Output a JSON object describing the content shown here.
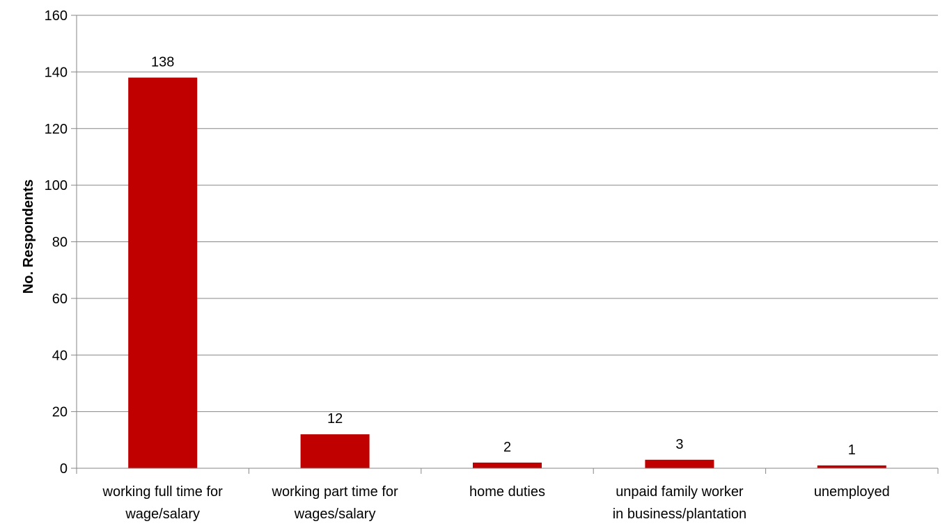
{
  "chart_data": {
    "type": "bar",
    "categories": [
      [
        "working full time for",
        "wage/salary"
      ],
      [
        "working part time for",
        "wages/salary"
      ],
      [
        "home duties"
      ],
      [
        "unpaid family worker",
        "in business/plantation"
      ],
      [
        "unemployed"
      ]
    ],
    "values": [
      138,
      12,
      2,
      3,
      1
    ],
    "data_labels": [
      "138",
      "12",
      "2",
      "3",
      "1"
    ],
    "title": "",
    "xlabel": "",
    "ylabel": "No. Respondents",
    "ylim": [
      0,
      160
    ],
    "yticks": [
      0,
      20,
      40,
      60,
      80,
      100,
      120,
      140,
      160
    ],
    "grid": true,
    "legend": "none",
    "bar_color": "#c00000",
    "grid_color": "#868686"
  }
}
